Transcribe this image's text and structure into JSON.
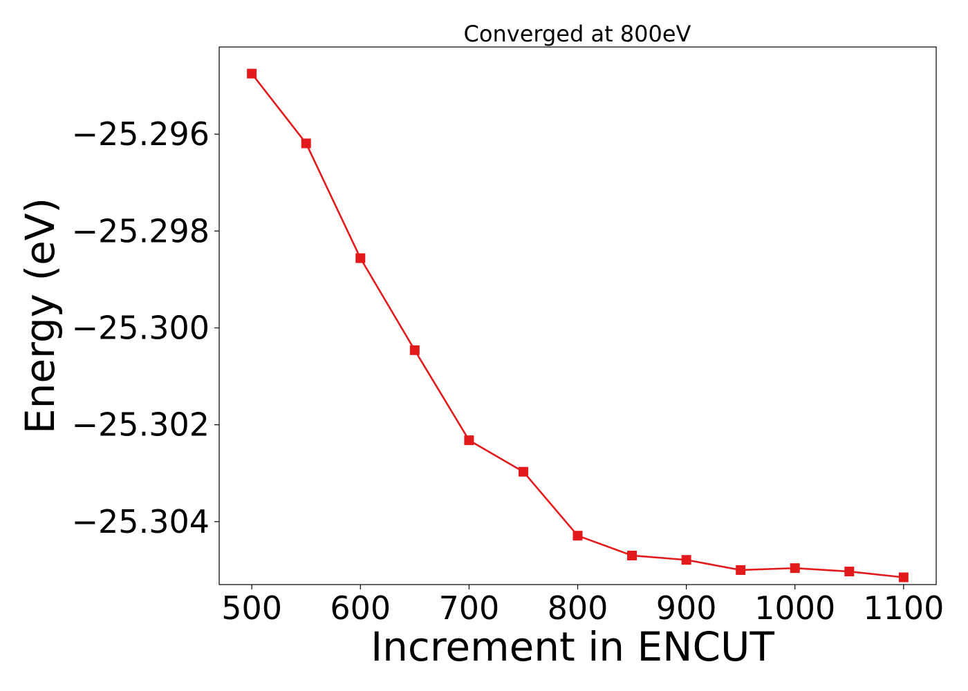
{
  "chart_data": {
    "type": "line",
    "title": "Converged at 800eV",
    "xlabel": "Increment in ENCUT",
    "ylabel": "Energy (eV)",
    "x": [
      500,
      550,
      600,
      650,
      700,
      750,
      800,
      850,
      900,
      950,
      1000,
      1050,
      1100
    ],
    "series": [
      {
        "values": [
          -25.29475,
          -25.29619,
          -25.29856,
          -25.30046,
          -25.30232,
          -25.30297,
          -25.30429,
          -25.3047,
          -25.30479,
          -25.305,
          -25.30496,
          -25.30503,
          -25.30515
        ],
        "color": "#e31a1c",
        "marker": "square"
      }
    ],
    "xlim": [
      470,
      1130
    ],
    "ylim": [
      -25.3053,
      -25.2942
    ],
    "xticks": [
      {
        "value": 500,
        "label": "500"
      },
      {
        "value": 600,
        "label": "600"
      },
      {
        "value": 700,
        "label": "700"
      },
      {
        "value": 800,
        "label": "800"
      },
      {
        "value": 900,
        "label": "900"
      },
      {
        "value": 1000,
        "label": "1000"
      },
      {
        "value": 1100,
        "label": "1100"
      }
    ],
    "yticks": [
      {
        "value": -25.296,
        "label": "−25.296"
      },
      {
        "value": -25.298,
        "label": "−25.298"
      },
      {
        "value": -25.3,
        "label": "−25.300"
      },
      {
        "value": -25.302,
        "label": "−25.302"
      },
      {
        "value": -25.304,
        "label": "−25.304"
      }
    ],
    "grid": false,
    "legend": "none"
  }
}
